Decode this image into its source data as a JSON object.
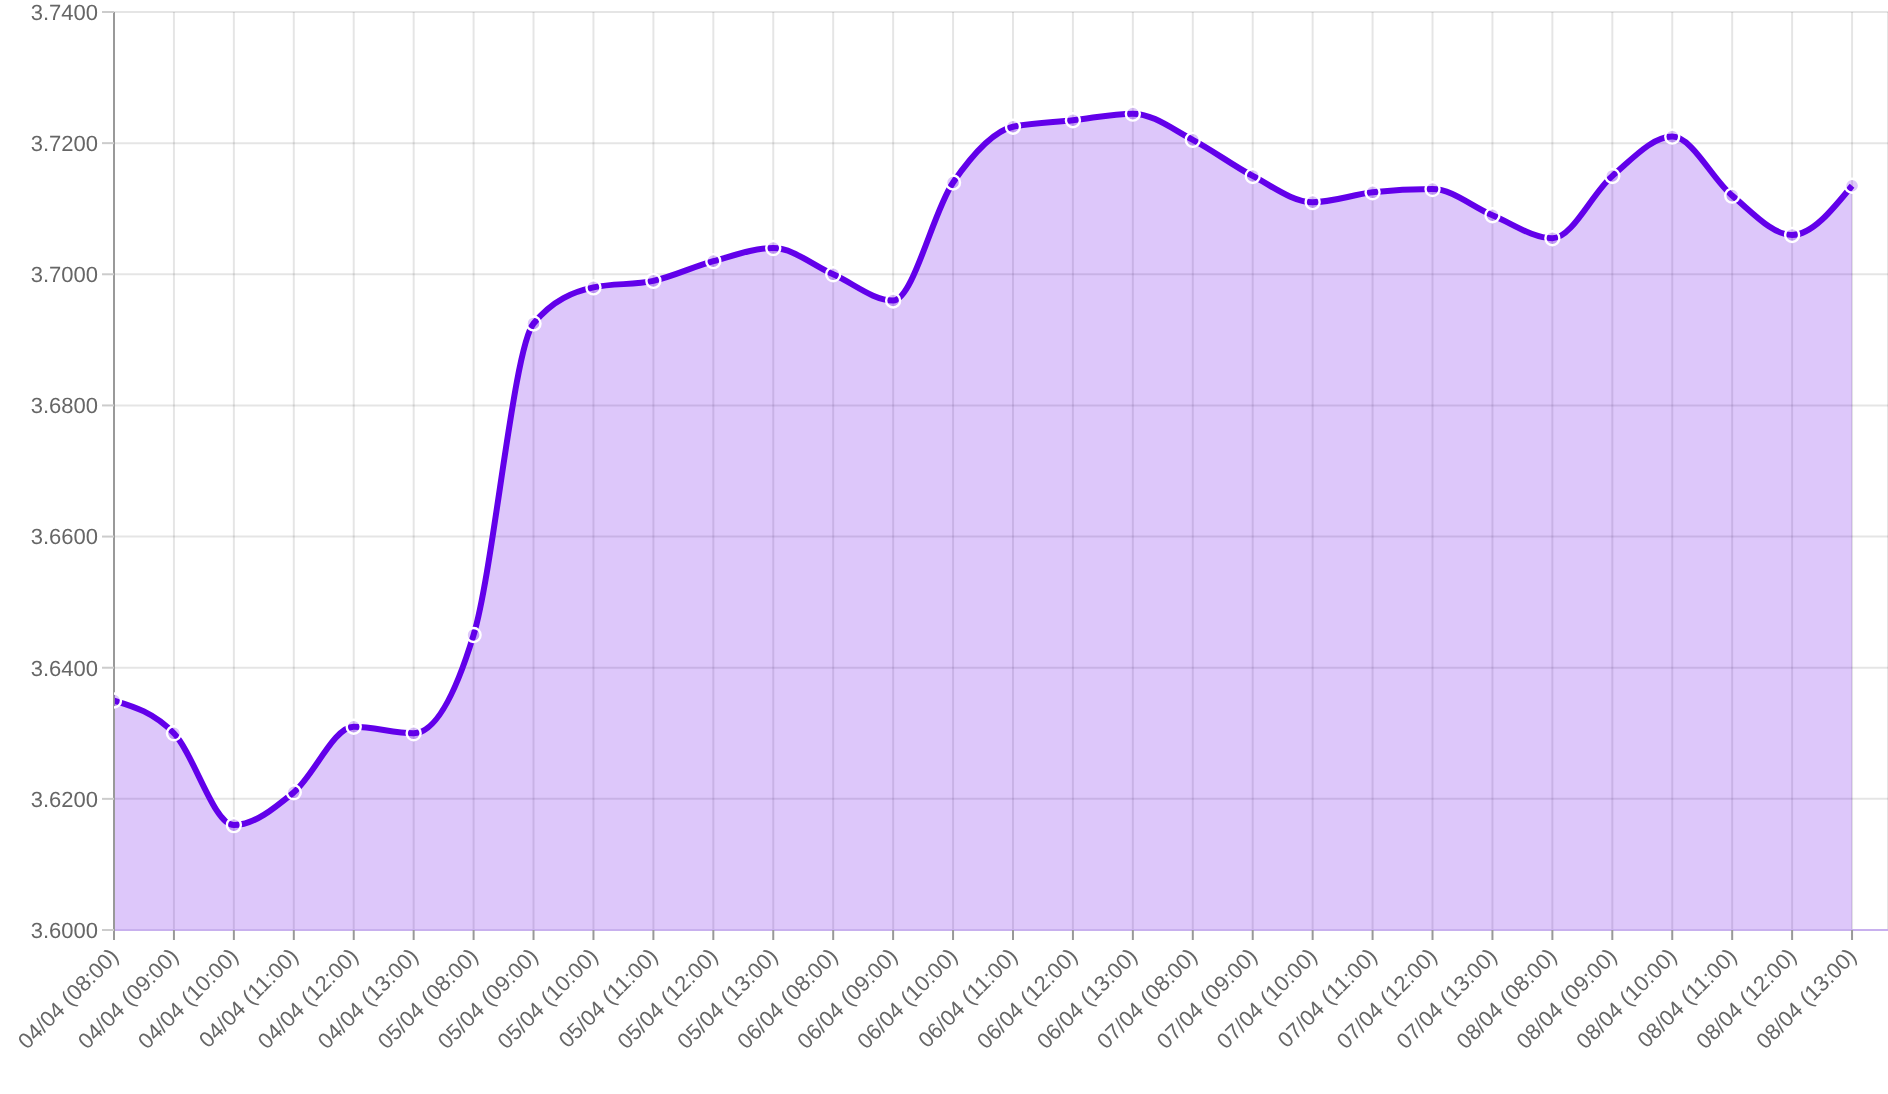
{
  "chart_data": {
    "type": "area",
    "categories": [
      "04/04 (08:00)",
      "04/04 (09:00)",
      "04/04 (10:00)",
      "04/04 (11:00)",
      "04/04 (12:00)",
      "04/04 (13:00)",
      "05/04 (08:00)",
      "05/04 (09:00)",
      "05/04 (10:00)",
      "05/04 (11:00)",
      "05/04 (12:00)",
      "05/04 (13:00)",
      "06/04 (08:00)",
      "06/04 (09:00)",
      "06/04 (10:00)",
      "06/04 (11:00)",
      "06/04 (12:00)",
      "06/04 (13:00)",
      "07/04 (08:00)",
      "07/04 (09:00)",
      "07/04 (10:00)",
      "07/04 (11:00)",
      "07/04 (12:00)",
      "07/04 (13:00)",
      "08/04 (08:00)",
      "08/04 (09:00)",
      "08/04 (10:00)",
      "08/04 (11:00)",
      "08/04 (12:00)",
      "08/04 (13:00)"
    ],
    "series": [
      {
        "color": "#6200ea",
        "values": [
          3.635,
          3.63,
          3.616,
          3.621,
          3.631,
          3.63,
          3.645,
          3.6925,
          3.698,
          3.699,
          3.702,
          3.704,
          3.7,
          3.696,
          3.714,
          3.7225,
          3.7235,
          3.7245,
          3.7205,
          3.715,
          3.711,
          3.7125,
          3.713,
          3.709,
          3.7055,
          3.715,
          3.721,
          3.712,
          3.706,
          3.7135
        ]
      }
    ],
    "ylim": [
      3.6,
      3.74
    ],
    "yticks": [
      {
        "value": 3.6,
        "label": "3.6000"
      },
      {
        "value": 3.62,
        "label": "3.6200"
      },
      {
        "value": 3.64,
        "label": "3.6400"
      },
      {
        "value": 3.66,
        "label": "3.6600"
      },
      {
        "value": 3.68,
        "label": "3.6800"
      },
      {
        "value": 3.7,
        "label": "3.7000"
      },
      {
        "value": 3.72,
        "label": "3.7200"
      },
      {
        "value": 3.74,
        "label": "3.7400"
      }
    ],
    "grid": true,
    "marker": "circle",
    "line_style": "solid"
  }
}
